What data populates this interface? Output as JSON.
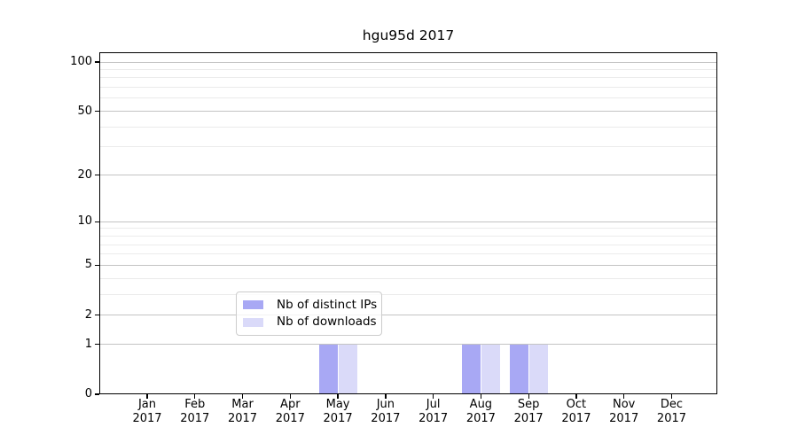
{
  "title": "hgu95d 2017",
  "chart_data": {
    "type": "bar",
    "title": "hgu95d 2017",
    "x": {
      "categories": [
        "Jan",
        "Feb",
        "Mar",
        "Apr",
        "May",
        "Jun",
        "Jul",
        "Aug",
        "Sep",
        "Oct",
        "Nov",
        "Dec"
      ],
      "year_label": "2017"
    },
    "y": {
      "scale": "log10(value+1)",
      "range": [
        0,
        100
      ],
      "tick_values": [
        0,
        1,
        2,
        5,
        10,
        20,
        50,
        100
      ],
      "tick_labels": [
        "0",
        "1",
        "2",
        "5",
        "10",
        "20",
        "50",
        "100"
      ],
      "grid": true
    },
    "series": [
      {
        "name": "Nb of distinct IPs",
        "color": "#a8a8f4",
        "values": [
          0,
          0,
          0,
          0,
          1,
          0,
          0,
          1,
          1,
          0,
          0,
          0
        ]
      },
      {
        "name": "Nb of downloads",
        "color": "#dadaf9",
        "values": [
          0,
          0,
          0,
          0,
          1,
          0,
          0,
          1,
          1,
          0,
          0,
          0
        ]
      }
    ],
    "legend": {
      "position": "bottom-center-inside",
      "entries": [
        "Nb of distinct IPs",
        "Nb of downloads"
      ]
    }
  },
  "colors": {
    "axis": "#000000",
    "major_grid": "#c3c3c3",
    "minor_grid": "#ebebeb",
    "legend_border": "#cccccc",
    "text": "#000000"
  }
}
